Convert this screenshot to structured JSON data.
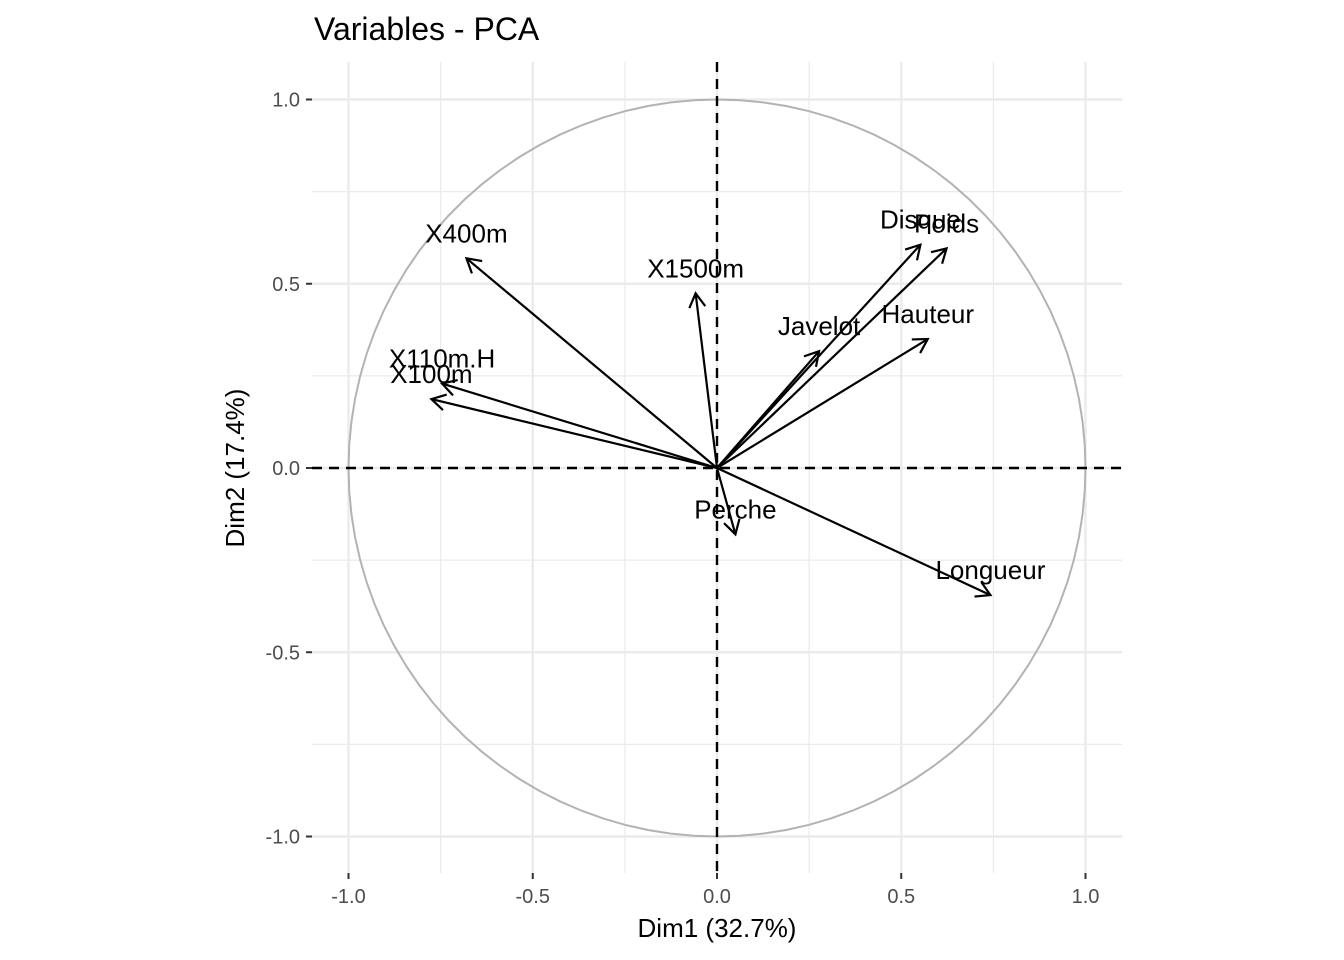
{
  "chart_data": {
    "type": "scatter",
    "title": "Variables - PCA",
    "xlabel": "Dim1 (32.7%)",
    "ylabel": "Dim2 (17.4%)",
    "xlim": [
      -1.1,
      1.1
    ],
    "ylim": [
      -1.1,
      1.1
    ],
    "xticks": [
      -1.0,
      -0.5,
      0.0,
      0.5,
      1.0
    ],
    "yticks": [
      -1.0,
      -0.5,
      0.0,
      0.5,
      1.0
    ],
    "xtick_labels": [
      "-1.0",
      "-0.5",
      "0.0",
      "0.5",
      "1.0"
    ],
    "ytick_labels": [
      "-1.0",
      "-0.5",
      "0.0",
      "0.5",
      "1.0"
    ],
    "grid": true,
    "unit_circle": true,
    "reference_lines": "dashed at x=0 and y=0",
    "variables": [
      {
        "name": "X100m",
        "x": -0.775,
        "y": 0.187
      },
      {
        "name": "Longueur",
        "x": 0.742,
        "y": -0.345
      },
      {
        "name": "Poids",
        "x": 0.623,
        "y": 0.596
      },
      {
        "name": "Hauteur",
        "x": 0.572,
        "y": 0.35
      },
      {
        "name": "X400m",
        "x": -0.68,
        "y": 0.569
      },
      {
        "name": "X110m.H",
        "x": -0.746,
        "y": 0.229
      },
      {
        "name": "Disque",
        "x": 0.552,
        "y": 0.606
      },
      {
        "name": "Perche",
        "x": 0.05,
        "y": -0.18
      },
      {
        "name": "Javelot",
        "x": 0.277,
        "y": 0.317
      },
      {
        "name": "X1500m",
        "x": -0.058,
        "y": 0.474
      }
    ],
    "colors": {
      "arrows": "#000000",
      "circle": "#b3b3b3",
      "grid": "#ebebeb"
    }
  }
}
